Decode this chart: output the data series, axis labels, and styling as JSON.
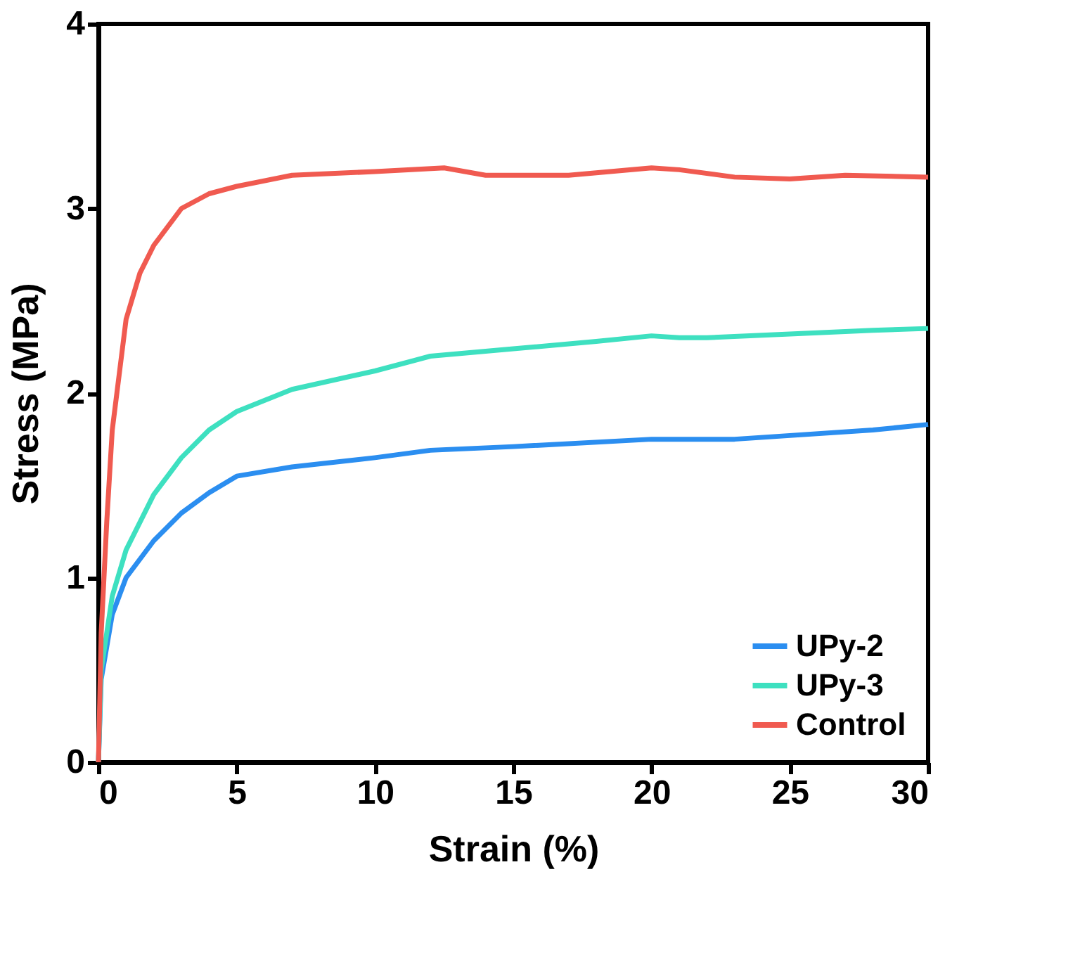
{
  "chart_data": {
    "type": "line",
    "xlabel": "Strain (%)",
    "ylabel": "Stress (MPa)",
    "xlim": [
      0,
      30
    ],
    "xticks": [
      0,
      5,
      10,
      15,
      20,
      25,
      30
    ],
    "ylim": [
      0,
      4
    ],
    "yticks": [
      0,
      1,
      2,
      3,
      4
    ],
    "grid": false,
    "legend": "bottom right",
    "marker": "none",
    "line_style": "solid",
    "series": [
      {
        "name": "UPy-2",
        "color": "#2b8ef0",
        "x": [
          0,
          0.1,
          0.5,
          1,
          2,
          3,
          4,
          5,
          7,
          10,
          12,
          15,
          20,
          23,
          25,
          28,
          30
        ],
        "values": [
          0,
          0.45,
          0.8,
          1.0,
          1.2,
          1.35,
          1.46,
          1.55,
          1.6,
          1.65,
          1.69,
          1.71,
          1.75,
          1.75,
          1.77,
          1.8,
          1.83
        ]
      },
      {
        "name": "UPy-3",
        "color": "#3ee0c0",
        "x": [
          0,
          0.1,
          0.5,
          1,
          2,
          3,
          4,
          5,
          7,
          10,
          12,
          15,
          18,
          20,
          21,
          22,
          25,
          28,
          30
        ],
        "values": [
          0,
          0.5,
          0.9,
          1.15,
          1.45,
          1.65,
          1.8,
          1.9,
          2.02,
          2.12,
          2.2,
          2.24,
          2.28,
          2.31,
          2.3,
          2.3,
          2.32,
          2.34,
          2.35
        ]
      },
      {
        "name": "Control",
        "color": "#f05a50",
        "x": [
          0,
          0.1,
          0.3,
          0.5,
          1,
          1.5,
          2,
          3,
          4,
          5,
          7,
          10,
          12.5,
          14,
          15,
          17,
          20,
          21,
          23,
          25,
          27,
          30
        ],
        "values": [
          0,
          0.7,
          1.3,
          1.8,
          2.4,
          2.65,
          2.8,
          3.0,
          3.08,
          3.12,
          3.18,
          3.2,
          3.22,
          3.18,
          3.18,
          3.18,
          3.22,
          3.21,
          3.17,
          3.16,
          3.18,
          3.17
        ]
      }
    ]
  }
}
